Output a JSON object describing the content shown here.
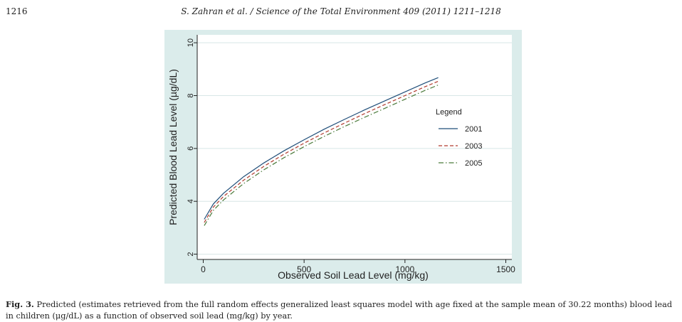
{
  "header": {
    "page_number": "1216",
    "running_head": "S. Zahran et al. / Science of the Total Environment 409 (2011) 1211–1218"
  },
  "caption": {
    "label": "Fig. 3.",
    "text": " Predicted (estimates retrieved from the full random effects generalized least squares model with age fixed at the sample mean of 30.22 months) blood lead in children (μg/dL) as a function of observed soil lead (mg/kg) by year."
  },
  "chart_data": {
    "type": "line",
    "title": "",
    "xlabel": "Observed Soil Lead Level (mg/kg)",
    "ylabel": "Predicted Blood Lead Level (µg/dL)",
    "xlim": [
      -30,
      1530
    ],
    "ylim": [
      1.8,
      10.3
    ],
    "xticks": [
      0,
      500,
      1000,
      1500
    ],
    "yticks": [
      2,
      4,
      6,
      8,
      10
    ],
    "grid": "horizontal",
    "legend": {
      "title": "Legend",
      "placement": "right"
    },
    "x": [
      5,
      50,
      100,
      200,
      300,
      400,
      500,
      600,
      700,
      800,
      900,
      1000,
      1100,
      1165
    ],
    "series": [
      {
        "name": "2001",
        "color": "#1f4e79",
        "dash": "solid",
        "values": [
          3.32,
          3.9,
          4.3,
          4.93,
          5.45,
          5.91,
          6.33,
          6.73,
          7.1,
          7.46,
          7.8,
          8.14,
          8.48,
          8.68
        ]
      },
      {
        "name": "2003",
        "color": "#b03a2e",
        "dash": "dashed",
        "values": [
          3.2,
          3.78,
          4.18,
          4.8,
          5.32,
          5.78,
          6.2,
          6.59,
          6.96,
          7.32,
          7.66,
          8.0,
          8.34,
          8.54
        ]
      },
      {
        "name": "2005",
        "color": "#4a7a3a",
        "dash": "dashdot",
        "values": [
          3.08,
          3.66,
          4.05,
          4.67,
          5.19,
          5.65,
          6.07,
          6.46,
          6.83,
          7.18,
          7.52,
          7.86,
          8.2,
          8.4
        ]
      }
    ]
  }
}
